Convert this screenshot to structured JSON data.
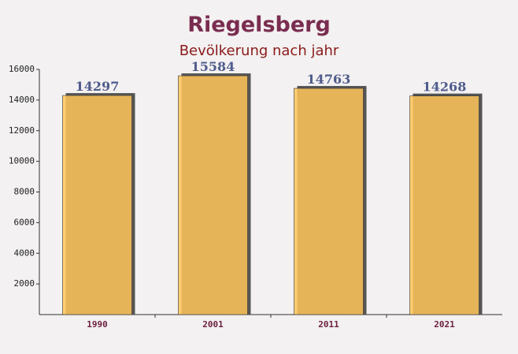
{
  "chart_data": {
    "type": "bar",
    "title": "Riegelsberg",
    "subtitle": "Bevölkerung nach jahr",
    "categories": [
      "1990",
      "2001",
      "2011",
      "2021"
    ],
    "values": [
      14297,
      15584,
      14763,
      14268
    ],
    "color": "#ffc65a",
    "ylim": [
      0,
      16000
    ],
    "yticks": [
      2000,
      4000,
      6000,
      8000,
      10000,
      12000,
      14000,
      16000
    ]
  }
}
